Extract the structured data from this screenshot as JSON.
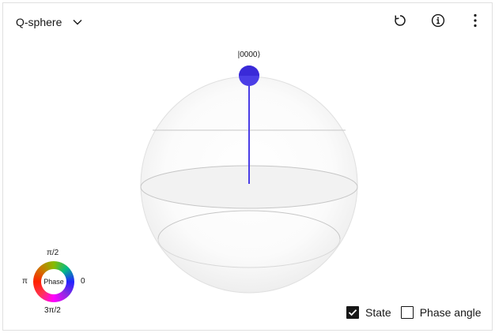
{
  "header": {
    "view_selector": {
      "selected": "Q-sphere"
    },
    "actions": {
      "reset_icon": "reset-icon",
      "info_icon": "info-icon",
      "more_icon": "overflow-menu-icon"
    }
  },
  "qsphere": {
    "state_label": "|0000⟩",
    "state_color": "#4b3ee6",
    "states": [
      {
        "label": "|0000⟩",
        "probability": 1.0,
        "phase": 0
      }
    ]
  },
  "phase_legend": {
    "center_label": "Phase",
    "top_label": "π/2",
    "left_label": "π",
    "right_label": "0",
    "bottom_label": "3π/2"
  },
  "options": {
    "state": {
      "label": "State",
      "checked": true
    },
    "phase_angle": {
      "label": "Phase angle",
      "checked": false
    }
  },
  "colors": {
    "text": "#161616",
    "sphere_line": "#c6c6c6",
    "state_vector": "#4b3ee6"
  }
}
